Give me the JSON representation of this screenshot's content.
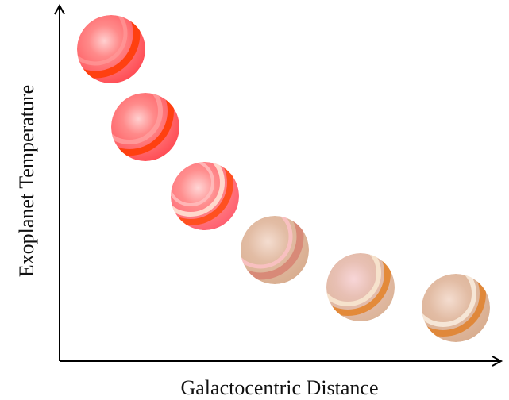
{
  "x_label": "Galactocentric Distance",
  "y_label": "Exoplanet Temperature"
}
